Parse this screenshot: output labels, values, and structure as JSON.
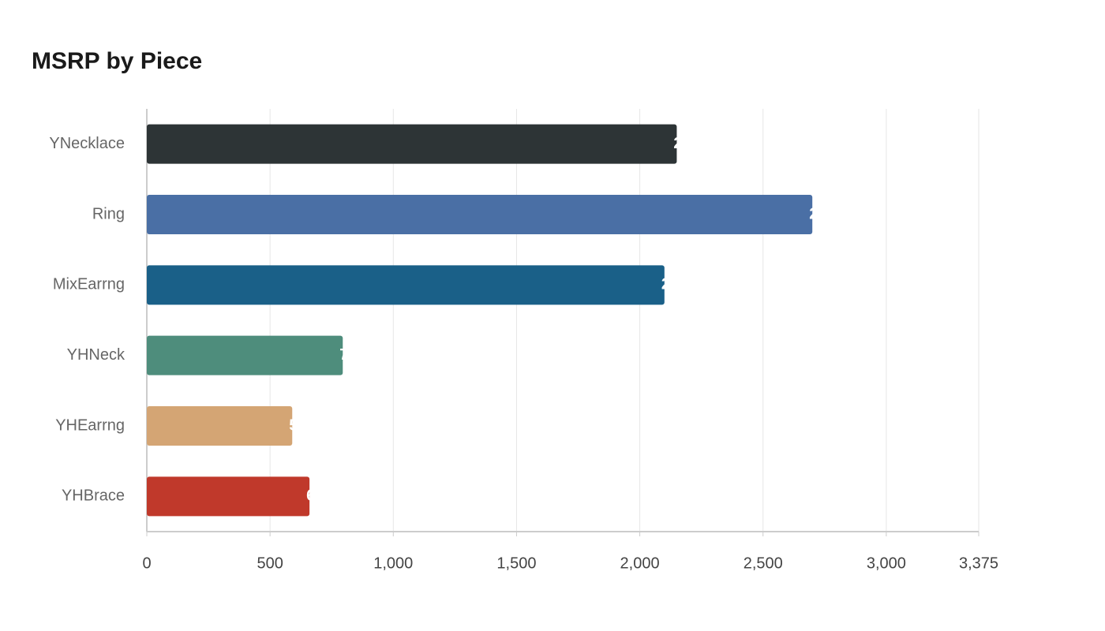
{
  "chart_data": {
    "type": "bar",
    "orientation": "horizontal",
    "title": "MSRP by Piece",
    "categories": [
      "YNecklace",
      "Ring",
      "MixEarrng",
      "YHNeck",
      "YHEarrng",
      "YHBrace"
    ],
    "values": [
      2150,
      2700,
      2100,
      795,
      590,
      660
    ],
    "colors": [
      "#2d3436",
      "#4a6fa5",
      "#1a6088",
      "#4e8d7c",
      "#d4a574",
      "#c0392b"
    ],
    "xlim": [
      0,
      3375
    ],
    "xticks": [
      0,
      500,
      {
        "value": 1000,
        "label": "1,000"
      },
      {
        "value": 1500,
        "label": "1,500"
      },
      {
        "value": 2000,
        "label": "2,000"
      },
      {
        "value": 2500,
        "label": "2,500"
      },
      {
        "value": 3000,
        "label": "3,000"
      },
      {
        "value": 3375,
        "label": "3,375"
      }
    ],
    "grid": true
  }
}
